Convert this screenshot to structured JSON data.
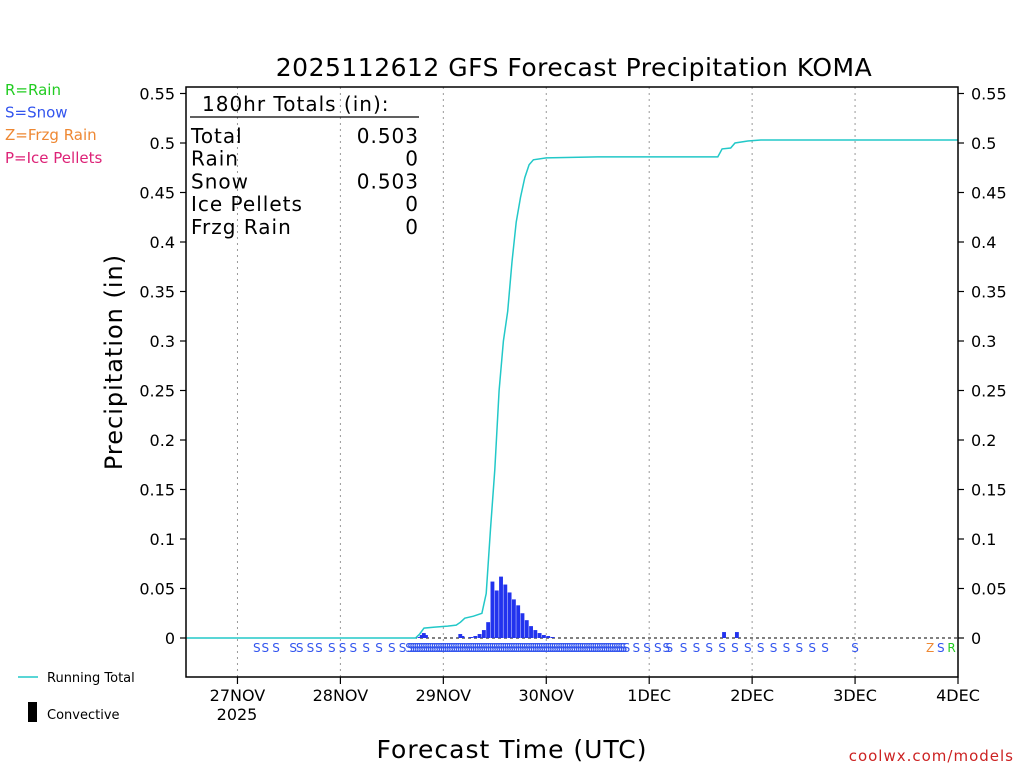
{
  "chart_data": {
    "type": "bar",
    "title": "2025112612 GFS Forecast Precipitation KOMA",
    "ylabel": "Precipitation (in)",
    "xlabel": "Forecast Time (UTC)",
    "ylim": [
      -0.04,
      0.56
    ],
    "xlim_hours": [
      0,
      180
    ],
    "y_ticks": [
      0,
      0.05,
      0.1,
      0.15,
      0.2,
      0.25,
      0.3,
      0.35,
      0.4,
      0.45,
      0.5,
      0.55
    ],
    "y_tick_labels": [
      "0",
      "0.05",
      "0.1",
      "0.15",
      "0.2",
      "0.25",
      "0.3",
      "0.35",
      "0.4",
      "0.45",
      "0.5",
      "0.55"
    ],
    "x_ticks": [
      {
        "hour": 12,
        "label": "27NOV"
      },
      {
        "hour": 36,
        "label": "28NOV"
      },
      {
        "hour": 60,
        "label": "29NOV"
      },
      {
        "hour": 84,
        "label": "30NOV"
      },
      {
        "hour": 108,
        "label": "1DEC"
      },
      {
        "hour": 132,
        "label": "2DEC"
      },
      {
        "hour": 156,
        "label": "3DEC"
      },
      {
        "hour": 180,
        "label": "4DEC"
      }
    ],
    "year_label": "2025",
    "legend_types": [
      {
        "text": "R=Rain",
        "color": "#22cc22"
      },
      {
        "text": "S=Snow",
        "color": "#3355ee"
      },
      {
        "text": "Z=Frzg Rain",
        "color": "#ee8833"
      },
      {
        "text": "P=Ice Pellets",
        "color": "#dd2277"
      }
    ],
    "totals": {
      "heading": "180hr Totals (in):",
      "rows": [
        {
          "label": "Total",
          "value": "0.503"
        },
        {
          "label": "Rain",
          "value": "0"
        },
        {
          "label": "Snow",
          "value": "0.503"
        },
        {
          "label": "Ice Pellets",
          "value": "0"
        },
        {
          "label": "Frzg Rain",
          "value": "0"
        }
      ]
    },
    "series": [
      {
        "name": "Snow (per period)",
        "color": "#2233ee",
        "points": [
          [
            54.0,
            0.001
          ],
          [
            54.5,
            0.003
          ],
          [
            55.0,
            0.005
          ],
          [
            55.5,
            0.003
          ],
          [
            63.5,
            0.004
          ],
          [
            64.0,
            0.002
          ],
          [
            66.0,
            0.001
          ],
          [
            67.0,
            0.002
          ],
          [
            68.0,
            0.004
          ],
          [
            69.0,
            0.008
          ],
          [
            70.0,
            0.016
          ],
          [
            71.0,
            0.057
          ],
          [
            72.0,
            0.048
          ],
          [
            73.0,
            0.062
          ],
          [
            74.0,
            0.054
          ],
          [
            75.0,
            0.046
          ],
          [
            76.0,
            0.039
          ],
          [
            77.0,
            0.033
          ],
          [
            78.0,
            0.025
          ],
          [
            79.0,
            0.018
          ],
          [
            80.0,
            0.012
          ],
          [
            81.0,
            0.008
          ],
          [
            82.0,
            0.005
          ],
          [
            83.0,
            0.003
          ],
          [
            84.0,
            0.002
          ],
          [
            85.0,
            0.001
          ],
          [
            125.0,
            0.006
          ],
          [
            128.0,
            0.006
          ]
        ]
      },
      {
        "name": "Running Total",
        "color": "#22c8c8",
        "points": [
          [
            0,
            0
          ],
          [
            53.5,
            0
          ],
          [
            54.5,
            0.004
          ],
          [
            55.5,
            0.01
          ],
          [
            58,
            0.011
          ],
          [
            61,
            0.012
          ],
          [
            63,
            0.013
          ],
          [
            64,
            0.016
          ],
          [
            65,
            0.02
          ],
          [
            67,
            0.022
          ],
          [
            69,
            0.025
          ],
          [
            70,
            0.045
          ],
          [
            71,
            0.11
          ],
          [
            72,
            0.17
          ],
          [
            73,
            0.25
          ],
          [
            74,
            0.3
          ],
          [
            75,
            0.33
          ],
          [
            76,
            0.38
          ],
          [
            77,
            0.42
          ],
          [
            78,
            0.445
          ],
          [
            79,
            0.465
          ],
          [
            80,
            0.478
          ],
          [
            81,
            0.483
          ],
          [
            84,
            0.485
          ],
          [
            96,
            0.486
          ],
          [
            124,
            0.486
          ],
          [
            125,
            0.494
          ],
          [
            127,
            0.495
          ],
          [
            128,
            0.5
          ],
          [
            131,
            0.502
          ],
          [
            134,
            0.503
          ],
          [
            180,
            0.503
          ]
        ]
      }
    ],
    "type_markers": [
      {
        "hours": [
          16.5,
          18.5,
          21.0,
          25.0,
          26.5,
          29.0,
          31.0,
          34.0,
          36.5,
          39.0,
          42.0,
          45.0,
          48.0,
          50.5,
          52.0
        ],
        "text": "S",
        "color": "#3355ee"
      },
      {
        "hours": [
          52.5,
          53.0,
          53.5,
          54.0,
          54.5,
          55.0,
          55.5,
          56.0,
          56.5,
          57.0,
          57.5,
          58.0,
          58.5,
          59.0,
          59.5,
          60.0,
          60.5,
          61.0,
          61.5,
          62.0,
          62.5,
          63.0,
          63.5,
          64.0,
          64.5,
          65.0,
          65.5,
          66.0,
          66.5,
          67.0,
          67.5,
          68.0,
          68.5,
          69.0,
          69.5,
          70.0,
          70.5,
          71.0,
          71.5,
          72.0,
          72.5,
          73.0,
          73.5,
          74.0,
          74.5,
          75.0,
          75.5,
          76.0,
          76.5,
          77.0,
          77.5,
          78.0,
          78.5,
          79.0,
          79.5,
          80.0,
          80.5,
          81.0,
          81.5,
          82.0,
          82.5,
          83.0,
          83.5,
          84.0,
          84.5,
          85.0,
          85.5,
          86.0,
          86.5,
          87.0,
          87.5,
          88.0,
          88.5,
          89.0,
          89.5,
          90.0,
          90.5,
          91.0,
          91.5,
          92.0,
          92.5,
          93.0,
          93.5,
          94.0,
          94.5,
          95.0,
          95.5,
          96.0,
          96.5,
          97.0,
          97.5,
          98.0,
          98.5,
          99.0,
          99.5,
          100.0,
          100.5,
          101.0,
          101.5,
          102.0
        ],
        "text": "S",
        "color": "#3355ee"
      },
      {
        "hours": [
          102.0,
          102.7,
          105.0,
          107.5,
          110.0,
          112.0,
          112.7,
          116.0,
          119.0,
          122.0,
          125.0,
          128.0,
          131.0,
          134.0,
          137.0,
          140.0,
          143.0,
          146.0,
          149.0,
          156.0
        ],
        "text": "S",
        "color": "#3355ee"
      },
      {
        "hours": [
          173.5
        ],
        "text": "Z",
        "color": "#ee8833"
      },
      {
        "hours": [
          176.0
        ],
        "text": "S",
        "color": "#3355ee"
      },
      {
        "hours": [
          178.5
        ],
        "text": "R",
        "color": "#22cc22"
      }
    ],
    "legend_bottom": [
      {
        "text": "Running Total",
        "color": "#22c8c8",
        "kind": "line"
      },
      {
        "text": "Convective",
        "color": "#000000",
        "kind": "box"
      }
    ],
    "credit": "coolwx.com/models"
  }
}
